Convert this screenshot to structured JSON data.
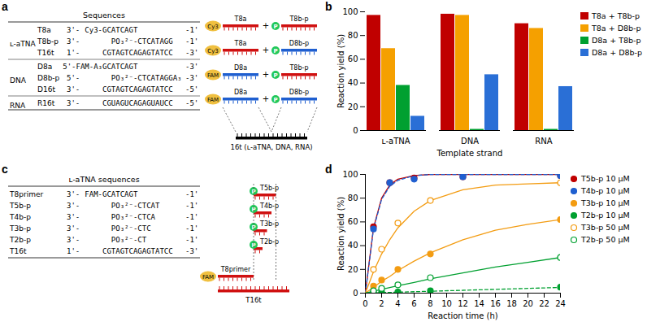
{
  "panels": [
    {
      "label": "a",
      "table": {
        "header": "Sequences",
        "groups": [
          {
            "name": "ʟ-aTNA",
            "rows": [
              {
                "name": "T8a",
                "start": "3'-",
                "seq": "Cy3-GCATCAGT",
                "end": "-1'"
              },
              {
                "name": "T8b-p",
                "start": "3'-",
                "seq": "PO₃²⁻-CTCATAGG",
                "end": "-1'"
              },
              {
                "name": "T16t",
                "start": "1'-",
                "seq": "CGTAGTCAGAGTATCC",
                "end": "-3'"
              }
            ]
          },
          {
            "name": "DNA",
            "rows": [
              {
                "name": "D8a",
                "seq": "5'-FAM-A₃GCATCAGT",
                "end": "-3'"
              },
              {
                "name": "D8b-p",
                "start": "5'-",
                "seq": "PO₃²⁻-CTCATAGGA₃",
                "end": "-3'"
              },
              {
                "name": "D16t",
                "start": "3'-",
                "seq": "CGTAGTCAGAGTATCC",
                "end": "-5'"
              }
            ]
          },
          {
            "name": "RNA",
            "rows": [
              {
                "name": "R16t",
                "start": "3'-",
                "seq": "CGUAGUCAGAGUAUCC",
                "end": "-5'"
              }
            ]
          }
        ]
      },
      "diagram": {
        "reactions": [
          {
            "dye": "Cy3",
            "a": "T8a",
            "b": "T8b-p"
          },
          {
            "dye": "Cy3",
            "a": "T8a",
            "b": "D8b-p"
          },
          {
            "dye": "FAM",
            "a": "D8a",
            "b": "T8b-p"
          },
          {
            "dye": "FAM",
            "a": "D8a",
            "b": "D8b-p"
          }
        ],
        "plus": "+",
        "phosphate": "P",
        "template": "16t (ʟ-aTNA, DNA, RNA)"
      }
    },
    {
      "label": "c",
      "table": {
        "header": "ʟ-aTNA sequences",
        "groups": [
          {
            "rows": [
              {
                "name": "T8primer",
                "start": "3'-",
                "seq": "FAM-GCATCAGT",
                "end": "-1'"
              },
              {
                "name": "T5b-p",
                "start": "3'-",
                "seq": "PO₃²⁻-CTCAT",
                "end": "-1'"
              },
              {
                "name": "T4b-p",
                "start": "3'-",
                "seq": "PO₃²⁻-CTCA",
                "end": "-1'"
              },
              {
                "name": "T3b-p",
                "start": "3'-",
                "seq": "PO₃²⁻-CTC",
                "end": "-1'"
              },
              {
                "name": "T2b-p",
                "start": "3'-",
                "seq": "PO₃²⁻-CT",
                "end": "-1'"
              },
              {
                "name": "T16t",
                "start": "1'-",
                "seq": "CGTAGTCAGAGTATCC",
                "end": "-3'"
              }
            ]
          }
        ]
      },
      "diagram": {
        "dye": "FAM",
        "primer": "T8primer",
        "primer_length": 8,
        "phosphate": "P",
        "strands": [
          {
            "name": "T5b-p",
            "length": 5
          },
          {
            "name": "T4b-p",
            "length": 4
          },
          {
            "name": "T3b-p",
            "length": 3
          },
          {
            "name": "T2b-p",
            "length": 2
          }
        ],
        "template": "T16t",
        "template_length": 16
      }
    }
  ],
  "chart_data": [
    {
      "label": "b",
      "type": "bar",
      "categories": [
        "ʟ-aTNA",
        "DNA",
        "RNA"
      ],
      "series": [
        {
          "name": "T8a + T8b-p",
          "color": "#c00000",
          "values": [
            97,
            98,
            90
          ]
        },
        {
          "name": "T8a + D8b-p",
          "color": "#f5a000",
          "values": [
            69,
            97,
            86
          ]
        },
        {
          "name": "D8a + T8b-p",
          "color": "#00a030",
          "values": [
            38,
            1,
            1
          ]
        },
        {
          "name": "D8a + D8b-p",
          "color": "#2a6fd6",
          "values": [
            12,
            47,
            37
          ]
        }
      ],
      "xlabel": "Template strand",
      "ylabel": "Reaction yield (%)",
      "ylim": [
        0,
        100
      ],
      "yticks": [
        0,
        20,
        40,
        60,
        80,
        100
      ],
      "legend": "top-right"
    },
    {
      "label": "d",
      "type": "scatter",
      "xlabel": "Reaction time (h)",
      "ylabel": "Reaction yield (%)",
      "xlim": [
        0,
        24
      ],
      "xticks": [
        0,
        2,
        4,
        6,
        8,
        10,
        12,
        14,
        16,
        18,
        20,
        22,
        24
      ],
      "ylim": [
        0,
        100
      ],
      "yticks": [
        0,
        20,
        40,
        60,
        80,
        100
      ],
      "legend": "right",
      "fit_x": [
        0,
        1,
        2,
        3,
        4,
        6,
        8,
        12,
        16,
        20,
        24
      ],
      "series": [
        {
          "name": "T5b-p 10 μM",
          "color": "#c00000",
          "marker": "filled",
          "line_style": "solid",
          "x": [
            1,
            3,
            6,
            12,
            24
          ],
          "values": [
            56,
            93,
            97,
            98,
            99
          ],
          "fit_values": [
            0,
            55,
            80,
            91,
            96,
            99,
            100,
            100,
            100,
            100,
            100
          ]
        },
        {
          "name": "T4b-p 10 μM",
          "color": "#1f5fd0",
          "marker": "filled",
          "line_style": "dashed",
          "x": [
            1,
            3,
            6,
            12,
            24
          ],
          "values": [
            54,
            93,
            96,
            98,
            99
          ],
          "fit_values": [
            0,
            54,
            79,
            90,
            95,
            99,
            100,
            100,
            100,
            100,
            100
          ]
        },
        {
          "name": "T3b-p 10 μM",
          "color": "#f39c12",
          "marker": "filled",
          "line_style": "solid",
          "x": [
            1,
            2,
            4,
            8,
            24
          ],
          "values": [
            6,
            11,
            20,
            33,
            62
          ],
          "fit_values": [
            0,
            5,
            10,
            14,
            19,
            27,
            34,
            45,
            53,
            58,
            62
          ]
        },
        {
          "name": "T2b-p 10 μM",
          "color": "#00a030",
          "marker": "filled",
          "line_style": "dashed",
          "x": [
            1,
            2,
            4,
            8,
            24
          ],
          "values": [
            1,
            1,
            1,
            2,
            5
          ],
          "fit_values": [
            0,
            0.2,
            0.4,
            0.6,
            0.8,
            1.2,
            1.6,
            2.4,
            3.2,
            4,
            4.8
          ]
        },
        {
          "name": "T3b-p 50 μM",
          "color": "#f39c12",
          "marker": "open",
          "line_style": "solid",
          "x": [
            1,
            2,
            4,
            8,
            24
          ],
          "values": [
            20,
            37,
            59,
            78,
            93
          ],
          "fit_values": [
            0,
            18,
            33,
            45,
            55,
            69,
            78,
            87,
            91,
            92,
            93
          ]
        },
        {
          "name": "T2b-p 50 μM",
          "color": "#00a030",
          "marker": "open",
          "line_style": "solid",
          "x": [
            1,
            2,
            4,
            8,
            24
          ],
          "values": [
            2,
            4,
            7,
            13,
            30
          ],
          "fit_values": [
            0,
            1.6,
            3.2,
            4.7,
            6.2,
            9,
            12,
            17,
            22,
            26,
            30
          ]
        }
      ]
    }
  ]
}
